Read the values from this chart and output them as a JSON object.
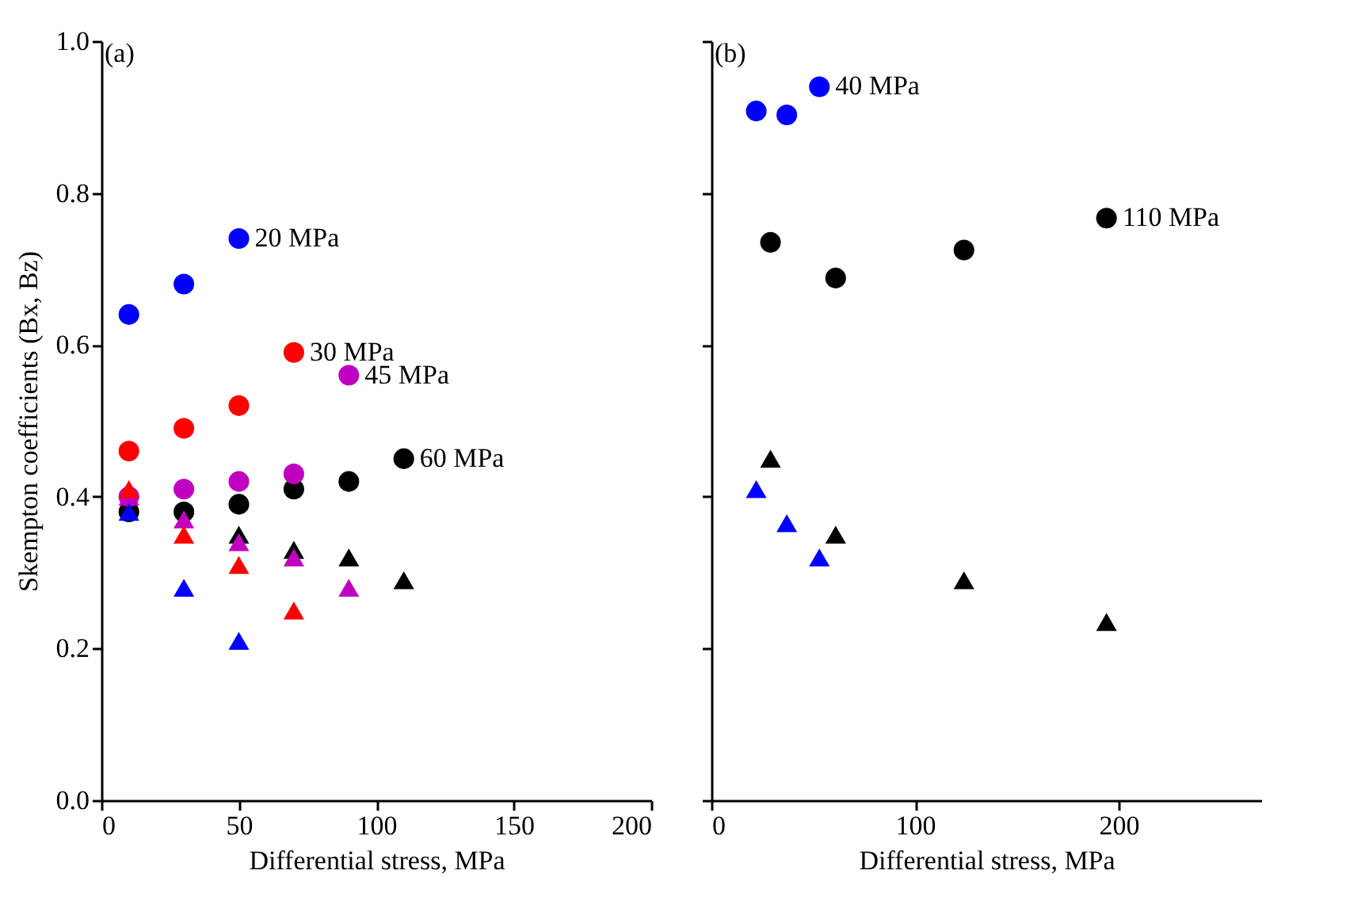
{
  "chart_data": [
    {
      "type": "scatter",
      "xlabel": "Differential stress, MPa",
      "ylabel": "Skempton coefficients (Bx, Bz)",
      "xlim": [
        0,
        200
      ],
      "xticks": [
        0,
        50,
        100,
        150,
        200
      ],
      "ylim": [
        0,
        1.0
      ],
      "yticks": [
        {
          "value": 0,
          "label": "0.0"
        },
        0.2,
        0.4,
        0.6,
        0.8,
        {
          "value": 1,
          "label": "1.0"
        }
      ],
      "grid": false,
      "legend": false,
      "annotations": [
        "(a)",
        {
          "text": "20 MPa",
          "x": 50,
          "y": 0.74
        },
        {
          "text": "30 MPa",
          "x": 70,
          "y": 0.59
        },
        {
          "text": "45 MPa",
          "x": 90,
          "y": 0.56
        },
        {
          "text": "60 MPa",
          "x": 110,
          "y": 0.45
        }
      ],
      "series": [
        {
          "color": "#000000",
          "marker": "circle",
          "x": [
            10,
            30,
            50,
            70,
            90,
            110
          ],
          "values": [
            0.38,
            0.38,
            0.39,
            0.41,
            0.42,
            0.45
          ]
        },
        {
          "color": "#000000",
          "marker": "triangle",
          "x": [
            50,
            70,
            90,
            110
          ],
          "values": [
            0.35,
            0.33,
            0.32,
            0.29
          ]
        },
        {
          "color": "#c000c0",
          "marker": "circle",
          "x": [
            10,
            30,
            50,
            70,
            90
          ],
          "values": [
            0.4,
            0.41,
            0.42,
            0.43,
            0.56
          ]
        },
        {
          "color": "#c000c0",
          "marker": "triangle",
          "x": [
            10,
            30,
            50,
            70,
            90
          ],
          "values": [
            0.4,
            0.37,
            0.34,
            0.32,
            0.28
          ]
        },
        {
          "color": "#ff0000",
          "marker": "circle",
          "x": [
            10,
            30,
            50,
            70
          ],
          "values": [
            0.46,
            0.49,
            0.52,
            0.59
          ]
        },
        {
          "color": "#ff0000",
          "marker": "triangle",
          "x": [
            10,
            30,
            50,
            70
          ],
          "values": [
            0.41,
            0.35,
            0.31,
            0.25
          ]
        },
        {
          "color": "#0000ff",
          "marker": "circle",
          "x": [
            10,
            30,
            50
          ],
          "values": [
            0.64,
            0.68,
            0.74
          ]
        },
        {
          "color": "#0000ff",
          "marker": "triangle",
          "x": [
            10,
            30,
            50
          ],
          "values": [
            0.38,
            0.28,
            0.21
          ]
        }
      ]
    },
    {
      "type": "scatter",
      "xlabel": "Differential stress, MPa",
      "xlim": [
        0,
        270
      ],
      "xticks": [
        0,
        100,
        200
      ],
      "ylim": [
        0,
        1.0
      ],
      "yticks": [
        0,
        0.2,
        0.4,
        0.6,
        0.8,
        1
      ],
      "tick_labels": "x",
      "grid": false,
      "legend": false,
      "annotations": [
        "(b)",
        {
          "text": "40 MPa",
          "x": 53,
          "y": 0.94
        },
        {
          "text": "110 MPa",
          "x": 194,
          "y": 0.767
        }
      ],
      "series": [
        {
          "color": "#000000",
          "marker": "circle",
          "x": [
            29,
            61,
            124,
            194
          ],
          "values": [
            0.735,
            0.688,
            0.725,
            0.767
          ]
        },
        {
          "color": "#000000",
          "marker": "triangle",
          "x": [
            29,
            61,
            124,
            194
          ],
          "values": [
            0.45,
            0.35,
            0.29,
            0.235
          ]
        },
        {
          "color": "#0000ff",
          "marker": "circle",
          "x": [
            22,
            37,
            53
          ],
          "values": [
            0.908,
            0.903,
            0.94
          ]
        },
        {
          "color": "#0000ff",
          "marker": "triangle",
          "x": [
            22,
            37,
            53
          ],
          "values": [
            0.41,
            0.365,
            0.32
          ]
        }
      ]
    }
  ]
}
